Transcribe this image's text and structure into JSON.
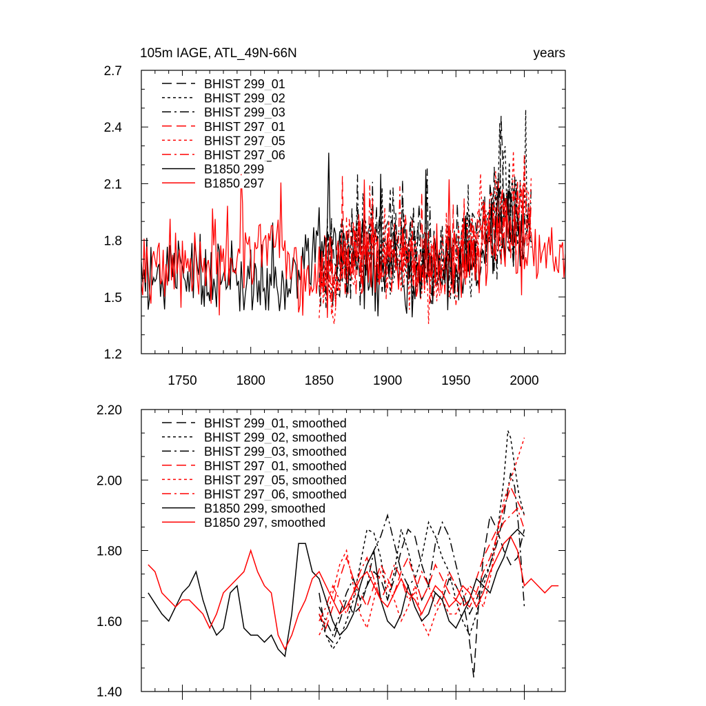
{
  "colors": {
    "black": "#000000",
    "red": "#ff0000"
  },
  "chart_data": [
    {
      "type": "line",
      "title": "105m IAGE, ATL_49N-66N",
      "units_label": "years",
      "xlim": [
        1720,
        2030
      ],
      "ylim": [
        1.2,
        2.7
      ],
      "yticks": [
        1.2,
        1.5,
        1.8,
        2.1,
        2.4,
        2.7
      ],
      "ytick_labels": [
        "1.2",
        "1.5",
        "1.8",
        "2.1",
        "2.4",
        "2.7"
      ],
      "xticks": [
        1750,
        1800,
        1850,
        1900,
        1950,
        2000
      ],
      "xtick_labels": [
        "1750",
        "1800",
        "1850",
        "1900",
        "1950",
        "2000"
      ],
      "legend_position": "top-left",
      "series": [
        {
          "name": "BHIST 299_01",
          "color": "#000000",
          "dash": "long-dash",
          "start": 1850,
          "end": 2005,
          "base": [
            1.72,
            1.7,
            1.73,
            1.74,
            1.76,
            1.75,
            1.74,
            1.73,
            1.73,
            1.74,
            1.72,
            1.7,
            1.68,
            1.66,
            1.68,
            1.72,
            1.76,
            1.8,
            1.9,
            2.05,
            1.95,
            1.85,
            1.8,
            1.75
          ],
          "amp": 0.17,
          "seed": 11
        },
        {
          "name": "BHIST 299_02",
          "color": "#000000",
          "dash": "dot",
          "start": 1850,
          "end": 2005,
          "base": [
            1.62,
            1.6,
            1.68,
            1.75,
            1.8,
            1.82,
            1.84,
            1.8,
            1.76,
            1.72,
            1.7,
            1.68,
            1.66,
            1.64,
            1.62,
            1.66,
            1.7,
            1.76,
            1.85,
            2.0,
            2.1,
            2.0,
            1.95,
            1.9
          ],
          "amp": 0.17,
          "seed": 23
        },
        {
          "name": "BHIST 299_03",
          "color": "#000000",
          "dash": "dash-dot",
          "start": 1850,
          "end": 2005,
          "base": [
            1.65,
            1.62,
            1.66,
            1.7,
            1.74,
            1.78,
            1.82,
            1.85,
            1.84,
            1.8,
            1.76,
            1.72,
            1.7,
            1.66,
            1.64,
            1.7,
            1.78,
            1.8,
            1.78,
            1.85,
            1.9,
            1.88,
            1.85,
            1.82
          ],
          "amp": 0.17,
          "seed": 37
        },
        {
          "name": "BHIST 297_01",
          "color": "#ff0000",
          "dash": "long-dash",
          "start": 1850,
          "end": 2005,
          "base": [
            1.62,
            1.6,
            1.66,
            1.7,
            1.74,
            1.74,
            1.72,
            1.7,
            1.72,
            1.74,
            1.72,
            1.7,
            1.68,
            1.66,
            1.66,
            1.7,
            1.74,
            1.8,
            1.85,
            1.9,
            1.95,
            1.9,
            1.88,
            1.86
          ],
          "amp": 0.16,
          "seed": 41
        },
        {
          "name": "BHIST 297_05",
          "color": "#ff0000",
          "dash": "dot",
          "start": 1850,
          "end": 2005,
          "base": [
            1.62,
            1.6,
            1.62,
            1.66,
            1.7,
            1.72,
            1.72,
            1.7,
            1.68,
            1.66,
            1.64,
            1.62,
            1.62,
            1.64,
            1.68,
            1.72,
            1.76,
            1.85,
            1.95,
            2.0,
            2.05,
            2.0,
            2.05,
            2.1
          ],
          "amp": 0.17,
          "seed": 53
        },
        {
          "name": "BHIST 297_06",
          "color": "#ff0000",
          "dash": "dash-dot",
          "start": 1850,
          "end": 2005,
          "base": [
            1.64,
            1.62,
            1.66,
            1.7,
            1.74,
            1.76,
            1.75,
            1.73,
            1.72,
            1.72,
            1.7,
            1.68,
            1.67,
            1.66,
            1.68,
            1.72,
            1.76,
            1.82,
            1.88,
            1.9,
            1.92,
            1.9,
            1.88,
            1.86
          ],
          "amp": 0.16,
          "seed": 67
        },
        {
          "name": "B1850 299",
          "color": "#000000",
          "dash": "solid",
          "start": 1720,
          "end": 2000,
          "base": [
            1.66,
            1.64,
            1.62,
            1.66,
            1.7,
            1.68,
            1.62,
            1.58,
            1.56,
            1.6,
            1.62,
            1.6,
            1.58,
            1.54,
            1.56,
            1.52,
            1.58,
            1.72,
            1.82,
            1.8,
            1.74,
            1.7,
            1.68,
            1.64,
            1.6,
            1.62,
            1.65,
            1.6,
            1.62,
            1.66,
            1.66,
            1.6,
            1.62,
            1.64,
            1.7,
            1.74,
            1.8,
            1.84,
            1.86,
            1.84
          ],
          "amp": 0.16,
          "seed": 79
        },
        {
          "name": "B1850 297",
          "color": "#ff0000",
          "dash": "solid",
          "start": 1720,
          "end": 2030,
          "base": [
            1.76,
            1.7,
            1.68,
            1.66,
            1.66,
            1.64,
            1.6,
            1.62,
            1.66,
            1.7,
            1.68,
            1.66,
            1.72,
            1.78,
            1.74,
            1.7,
            1.6,
            1.54,
            1.58,
            1.64,
            1.68,
            1.72,
            1.74,
            1.72,
            1.7,
            1.68,
            1.64,
            1.66,
            1.7,
            1.68,
            1.66,
            1.66,
            1.64,
            1.68,
            1.72,
            1.78,
            1.82,
            1.84,
            1.74,
            1.7,
            1.7,
            1.72,
            1.7,
            1.7
          ],
          "amp": 0.16,
          "seed": 97
        }
      ]
    },
    {
      "type": "line",
      "title": "",
      "xlim": [
        1720,
        2030
      ],
      "ylim": [
        1.4,
        2.2
      ],
      "yticks": [
        1.4,
        1.6,
        1.8,
        2.0,
        2.2
      ],
      "ytick_labels": [
        "1.40",
        "1.60",
        "1.80",
        "2.00",
        "2.20"
      ],
      "xticks": [
        1750,
        1800,
        1850,
        1900,
        1950,
        2000
      ],
      "legend_position": "top-left",
      "series": [
        {
          "name": "BHIST 299_01, smoothed",
          "color": "#000000",
          "dash": "long-dash",
          "x": [
            1850,
            1855,
            1860,
            1865,
            1870,
            1875,
            1880,
            1885,
            1890,
            1895,
            1900,
            1905,
            1910,
            1915,
            1920,
            1925,
            1930,
            1935,
            1940,
            1945,
            1950,
            1955,
            1958,
            1960,
            1963,
            1966,
            1970,
            1975,
            1980,
            1985,
            1990,
            1995,
            2000
          ],
          "y": [
            1.68,
            1.56,
            1.54,
            1.6,
            1.66,
            1.62,
            1.64,
            1.7,
            1.74,
            1.72,
            1.66,
            1.72,
            1.8,
            1.86,
            1.84,
            1.76,
            1.7,
            1.68,
            1.66,
            1.72,
            1.7,
            1.66,
            1.6,
            1.54,
            1.44,
            1.62,
            1.78,
            1.9,
            1.86,
            1.8,
            1.76,
            1.78,
            1.86
          ]
        },
        {
          "name": "BHIST 299_02, smoothed",
          "color": "#000000",
          "dash": "dot",
          "x": [
            1850,
            1855,
            1860,
            1865,
            1870,
            1875,
            1880,
            1885,
            1890,
            1895,
            1900,
            1905,
            1910,
            1915,
            1920,
            1925,
            1930,
            1935,
            1940,
            1945,
            1950,
            1955,
            1960,
            1965,
            1970,
            1975,
            1980,
            1985,
            1988,
            1990,
            1993,
            1996,
            2000
          ],
          "y": [
            1.62,
            1.56,
            1.52,
            1.55,
            1.6,
            1.66,
            1.76,
            1.86,
            1.85,
            1.78,
            1.66,
            1.74,
            1.86,
            1.8,
            1.72,
            1.78,
            1.88,
            1.84,
            1.78,
            1.74,
            1.66,
            1.6,
            1.56,
            1.62,
            1.7,
            1.76,
            1.84,
            2.0,
            2.14,
            2.12,
            2.04,
            1.96,
            1.9
          ]
        },
        {
          "name": "BHIST 299_03, smoothed",
          "color": "#000000",
          "dash": "dash-dot",
          "x": [
            1850,
            1855,
            1860,
            1865,
            1870,
            1875,
            1880,
            1885,
            1890,
            1895,
            1900,
            1905,
            1910,
            1915,
            1920,
            1925,
            1930,
            1935,
            1940,
            1945,
            1950,
            1955,
            1960,
            1965,
            1970,
            1975,
            1980,
            1985,
            1990,
            1993,
            1996,
            2000
          ],
          "y": [
            1.64,
            1.6,
            1.56,
            1.62,
            1.68,
            1.72,
            1.66,
            1.7,
            1.8,
            1.84,
            1.9,
            1.82,
            1.74,
            1.7,
            1.72,
            1.66,
            1.7,
            1.82,
            1.88,
            1.84,
            1.76,
            1.68,
            1.62,
            1.66,
            1.72,
            1.76,
            1.82,
            1.9,
            2.02,
            1.98,
            1.86,
            1.64
          ]
        },
        {
          "name": "BHIST 297_01, smoothed",
          "color": "#ff0000",
          "dash": "long-dash",
          "x": [
            1850,
            1855,
            1860,
            1865,
            1870,
            1875,
            1880,
            1885,
            1890,
            1895,
            1900,
            1905,
            1910,
            1915,
            1920,
            1925,
            1930,
            1935,
            1940,
            1945,
            1950,
            1955,
            1960,
            1965,
            1970,
            1975,
            1980,
            1985,
            1990,
            1995,
            2000
          ],
          "y": [
            1.62,
            1.58,
            1.64,
            1.72,
            1.78,
            1.72,
            1.68,
            1.64,
            1.7,
            1.76,
            1.72,
            1.68,
            1.74,
            1.78,
            1.72,
            1.66,
            1.7,
            1.76,
            1.72,
            1.68,
            1.66,
            1.64,
            1.66,
            1.72,
            1.78,
            1.82,
            1.86,
            1.92,
            1.98,
            1.94,
            1.9
          ]
        },
        {
          "name": "BHIST 297_05, smoothed",
          "color": "#ff0000",
          "dash": "dot",
          "x": [
            1850,
            1855,
            1860,
            1865,
            1870,
            1875,
            1880,
            1885,
            1890,
            1895,
            1900,
            1905,
            1910,
            1915,
            1920,
            1925,
            1930,
            1935,
            1940,
            1945,
            1950,
            1955,
            1960,
            1965,
            1970,
            1975,
            1980,
            1985,
            1990,
            1995,
            2000
          ],
          "y": [
            1.56,
            1.6,
            1.68,
            1.76,
            1.8,
            1.7,
            1.62,
            1.58,
            1.66,
            1.74,
            1.7,
            1.66,
            1.6,
            1.64,
            1.7,
            1.6,
            1.56,
            1.62,
            1.66,
            1.62,
            1.62,
            1.66,
            1.7,
            1.68,
            1.64,
            1.72,
            1.84,
            1.94,
            2.0,
            2.06,
            2.12
          ]
        },
        {
          "name": "BHIST 297_06, smoothed",
          "color": "#ff0000",
          "dash": "dash-dot",
          "x": [
            1850,
            1855,
            1860,
            1865,
            1870,
            1875,
            1880,
            1885,
            1890,
            1895,
            1900,
            1905,
            1910,
            1915,
            1920,
            1925,
            1930,
            1935,
            1940,
            1945,
            1950,
            1955,
            1960,
            1965,
            1970,
            1975,
            1980,
            1985,
            1990,
            1995,
            2000
          ],
          "y": [
            1.6,
            1.64,
            1.7,
            1.66,
            1.62,
            1.68,
            1.74,
            1.78,
            1.72,
            1.66,
            1.7,
            1.76,
            1.72,
            1.66,
            1.68,
            1.74,
            1.7,
            1.64,
            1.68,
            1.74,
            1.7,
            1.66,
            1.64,
            1.68,
            1.74,
            1.78,
            1.84,
            1.88,
            1.9,
            1.92,
            1.86
          ]
        },
        {
          "name": "B1850 299, smoothed",
          "color": "#000000",
          "dash": "solid",
          "x": [
            1725,
            1730,
            1735,
            1740,
            1745,
            1750,
            1755,
            1760,
            1765,
            1770,
            1775,
            1780,
            1785,
            1790,
            1795,
            1800,
            1805,
            1810,
            1815,
            1820,
            1825,
            1830,
            1835,
            1840,
            1845,
            1850,
            1855,
            1860,
            1865,
            1870,
            1875,
            1880,
            1885,
            1890,
            1895,
            1900,
            1905,
            1910,
            1915,
            1920,
            1925,
            1930,
            1935,
            1940,
            1945,
            1950,
            1955,
            1960,
            1965,
            1970,
            1975,
            1980,
            1985,
            1990,
            1995,
            2000
          ],
          "y": [
            1.68,
            1.65,
            1.62,
            1.6,
            1.64,
            1.68,
            1.7,
            1.74,
            1.66,
            1.6,
            1.56,
            1.58,
            1.68,
            1.7,
            1.58,
            1.56,
            1.56,
            1.54,
            1.56,
            1.52,
            1.5,
            1.62,
            1.82,
            1.82,
            1.74,
            1.72,
            1.66,
            1.6,
            1.56,
            1.58,
            1.62,
            1.7,
            1.76,
            1.8,
            1.66,
            1.6,
            1.58,
            1.62,
            1.7,
            1.64,
            1.6,
            1.62,
            1.68,
            1.66,
            1.6,
            1.58,
            1.62,
            1.66,
            1.72,
            1.7,
            1.68,
            1.74,
            1.78,
            1.84,
            1.86,
            1.84
          ]
        },
        {
          "name": "B1850 297, smoothed",
          "color": "#ff0000",
          "dash": "solid",
          "x": [
            1725,
            1730,
            1735,
            1740,
            1745,
            1750,
            1755,
            1760,
            1765,
            1770,
            1775,
            1780,
            1785,
            1790,
            1795,
            1800,
            1805,
            1810,
            1815,
            1820,
            1825,
            1830,
            1835,
            1840,
            1845,
            1850,
            1855,
            1860,
            1865,
            1870,
            1875,
            1880,
            1885,
            1890,
            1895,
            1900,
            1905,
            1910,
            1915,
            1920,
            1925,
            1930,
            1935,
            1940,
            1945,
            1950,
            1955,
            1960,
            1965,
            1970,
            1975,
            1980,
            1985,
            1990,
            1995,
            2000,
            2005,
            2010,
            2015,
            2020,
            2025
          ],
          "y": [
            1.76,
            1.74,
            1.68,
            1.66,
            1.64,
            1.66,
            1.66,
            1.64,
            1.62,
            1.58,
            1.62,
            1.68,
            1.7,
            1.72,
            1.74,
            1.8,
            1.74,
            1.7,
            1.68,
            1.56,
            1.52,
            1.56,
            1.62,
            1.66,
            1.72,
            1.74,
            1.7,
            1.66,
            1.62,
            1.64,
            1.68,
            1.72,
            1.74,
            1.7,
            1.66,
            1.64,
            1.68,
            1.72,
            1.68,
            1.66,
            1.62,
            1.66,
            1.7,
            1.68,
            1.64,
            1.66,
            1.7,
            1.68,
            1.64,
            1.68,
            1.74,
            1.78,
            1.82,
            1.84,
            1.8,
            1.7,
            1.72,
            1.7,
            1.68,
            1.7,
            1.7
          ]
        }
      ]
    }
  ]
}
